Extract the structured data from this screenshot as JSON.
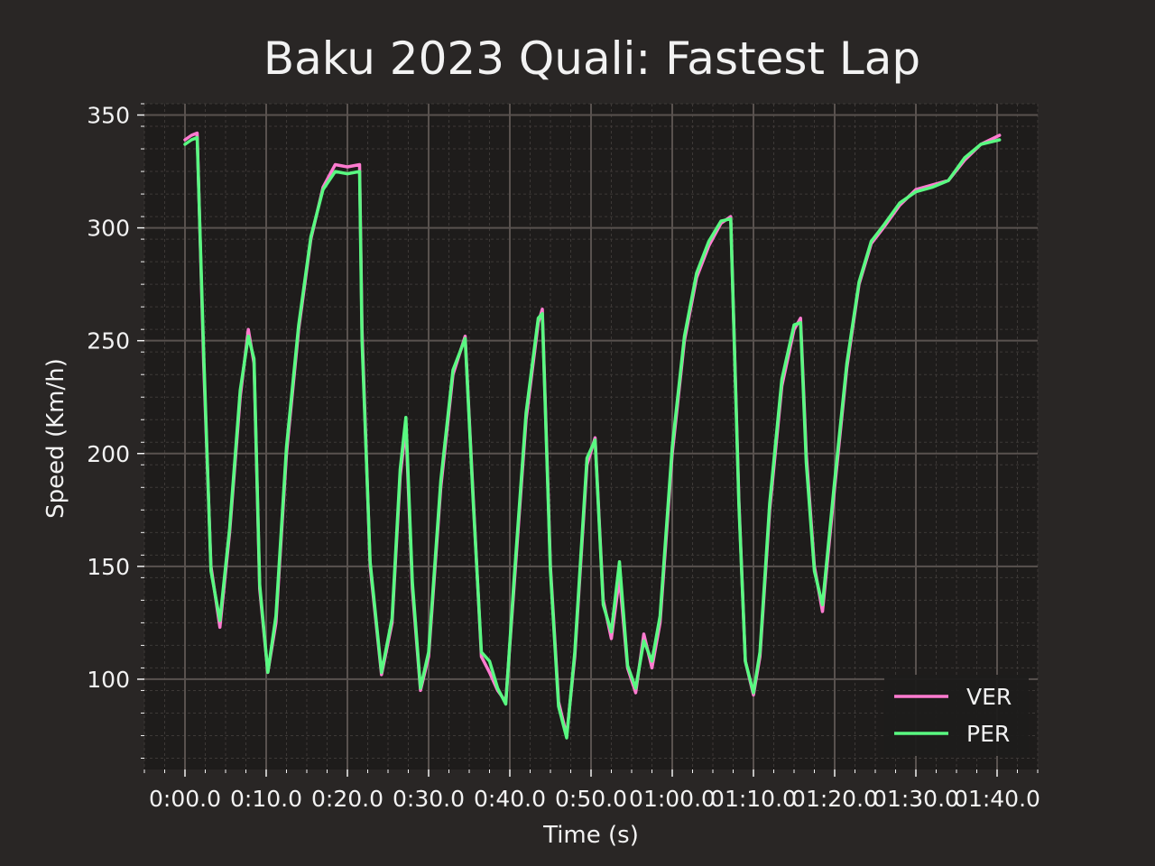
{
  "chart_data": {
    "type": "line",
    "title": "Baku 2023 Quali: Fastest Lap",
    "xlabel": "Time (s)",
    "ylabel": "Speed (Km/h)",
    "xlim": [
      -5,
      105
    ],
    "ylim": [
      60,
      355
    ],
    "xticks": [
      0,
      10,
      20,
      30,
      40,
      50,
      60,
      70,
      80,
      90,
      100
    ],
    "xtick_labels": [
      "0:00.0",
      "0:10.0",
      "0:20.0",
      "0:30.0",
      "0:40.0",
      "0:50.0",
      "01:00.0",
      "01:10.0",
      "01:20.0",
      "01:30.0",
      "01:40.0"
    ],
    "yticks": [
      100,
      150,
      200,
      250,
      300,
      350
    ],
    "ytick_labels": [
      "100",
      "150",
      "200",
      "250",
      "300",
      "350"
    ],
    "grid": true,
    "legend_position": "lower-right",
    "colors": {
      "background": "#292625",
      "plot_bg": "#1e1c1b",
      "major_grid": "#59524f",
      "minor_grid": "#3d3937",
      "text": "#f2f2f2"
    },
    "series": [
      {
        "name": "VER",
        "color": "#ff7bd0",
        "x": [
          0,
          0.8,
          1.5,
          2.3,
          3.2,
          4.3,
          5.5,
          6.8,
          7.8,
          8.5,
          9.2,
          10.2,
          11.2,
          12.5,
          14,
          15.5,
          17,
          18.5,
          20,
          21.5,
          21.8,
          22.8,
          24.2,
          25.5,
          26.5,
          27.2,
          28,
          29,
          30,
          31.5,
          33,
          34.5,
          35.5,
          36.5,
          37.5,
          38.5,
          39.5,
          40.5,
          42,
          43.5,
          44,
          45,
          46,
          47,
          48,
          49.5,
          50.5,
          51.5,
          52.5,
          53.5,
          54.5,
          55.5,
          56.5,
          57.5,
          58.5,
          60,
          61.5,
          63,
          64.5,
          66,
          67.2,
          68.2,
          69,
          70,
          70.8,
          72,
          73.5,
          75,
          75.8,
          76.5,
          77.5,
          78.5,
          80,
          81.5,
          83,
          84.5,
          86,
          88,
          90,
          92,
          94,
          96,
          98,
          100.3
        ],
        "values": [
          339,
          341,
          342,
          240,
          150,
          123,
          165,
          225,
          255,
          240,
          140,
          103,
          125,
          200,
          255,
          295,
          318,
          328,
          327,
          328,
          255,
          150,
          102,
          125,
          190,
          212,
          140,
          95,
          110,
          185,
          235,
          252,
          180,
          110,
          103,
          95,
          90,
          140,
          215,
          258,
          264,
          150,
          90,
          75,
          110,
          195,
          207,
          135,
          118,
          145,
          105,
          94,
          120,
          105,
          125,
          200,
          250,
          278,
          292,
          302,
          305,
          180,
          108,
          93,
          110,
          175,
          230,
          255,
          260,
          200,
          150,
          130,
          185,
          238,
          275,
          293,
          300,
          310,
          317,
          319,
          321,
          330,
          337,
          341
        ]
      },
      {
        "name": "PER",
        "color": "#59f981",
        "x": [
          0,
          0.8,
          1.5,
          2.3,
          3.2,
          4.3,
          5.5,
          6.8,
          7.8,
          8.5,
          9.2,
          10.2,
          11.2,
          12.5,
          14,
          15.5,
          17,
          18.5,
          20,
          21.5,
          21.8,
          22.8,
          24.2,
          25.5,
          26.5,
          27.2,
          28,
          29,
          30,
          31.5,
          33,
          34.5,
          35.5,
          36.5,
          37.5,
          38.5,
          39.5,
          40.5,
          42,
          43.5,
          44,
          45,
          46,
          47,
          48,
          49.5,
          50.5,
          51.5,
          52.5,
          53.5,
          54.5,
          55.5,
          56.5,
          57.5,
          58.5,
          60,
          61.5,
          63,
          64.5,
          66,
          67.2,
          68.2,
          69,
          70,
          70.8,
          72,
          73.5,
          75,
          75.8,
          76.5,
          77.5,
          78.5,
          80,
          81.5,
          83,
          84.5,
          86,
          88,
          90,
          92,
          94,
          96,
          98,
          100.3
        ],
        "values": [
          337,
          339,
          340,
          245,
          148,
          126,
          167,
          228,
          252,
          242,
          142,
          103,
          128,
          203,
          257,
          296,
          317,
          325,
          324,
          325,
          250,
          152,
          103,
          127,
          193,
          216,
          143,
          96,
          112,
          188,
          237,
          251,
          178,
          112,
          108,
          96,
          89,
          143,
          218,
          260,
          262,
          148,
          88,
          74,
          112,
          198,
          206,
          133,
          121,
          152,
          106,
          96,
          117,
          108,
          128,
          203,
          252,
          280,
          294,
          303,
          304,
          178,
          108,
          94,
          112,
          178,
          233,
          257,
          258,
          196,
          148,
          133,
          188,
          240,
          276,
          294,
          301,
          311,
          316,
          318,
          321,
          331,
          337,
          339
        ]
      }
    ]
  }
}
